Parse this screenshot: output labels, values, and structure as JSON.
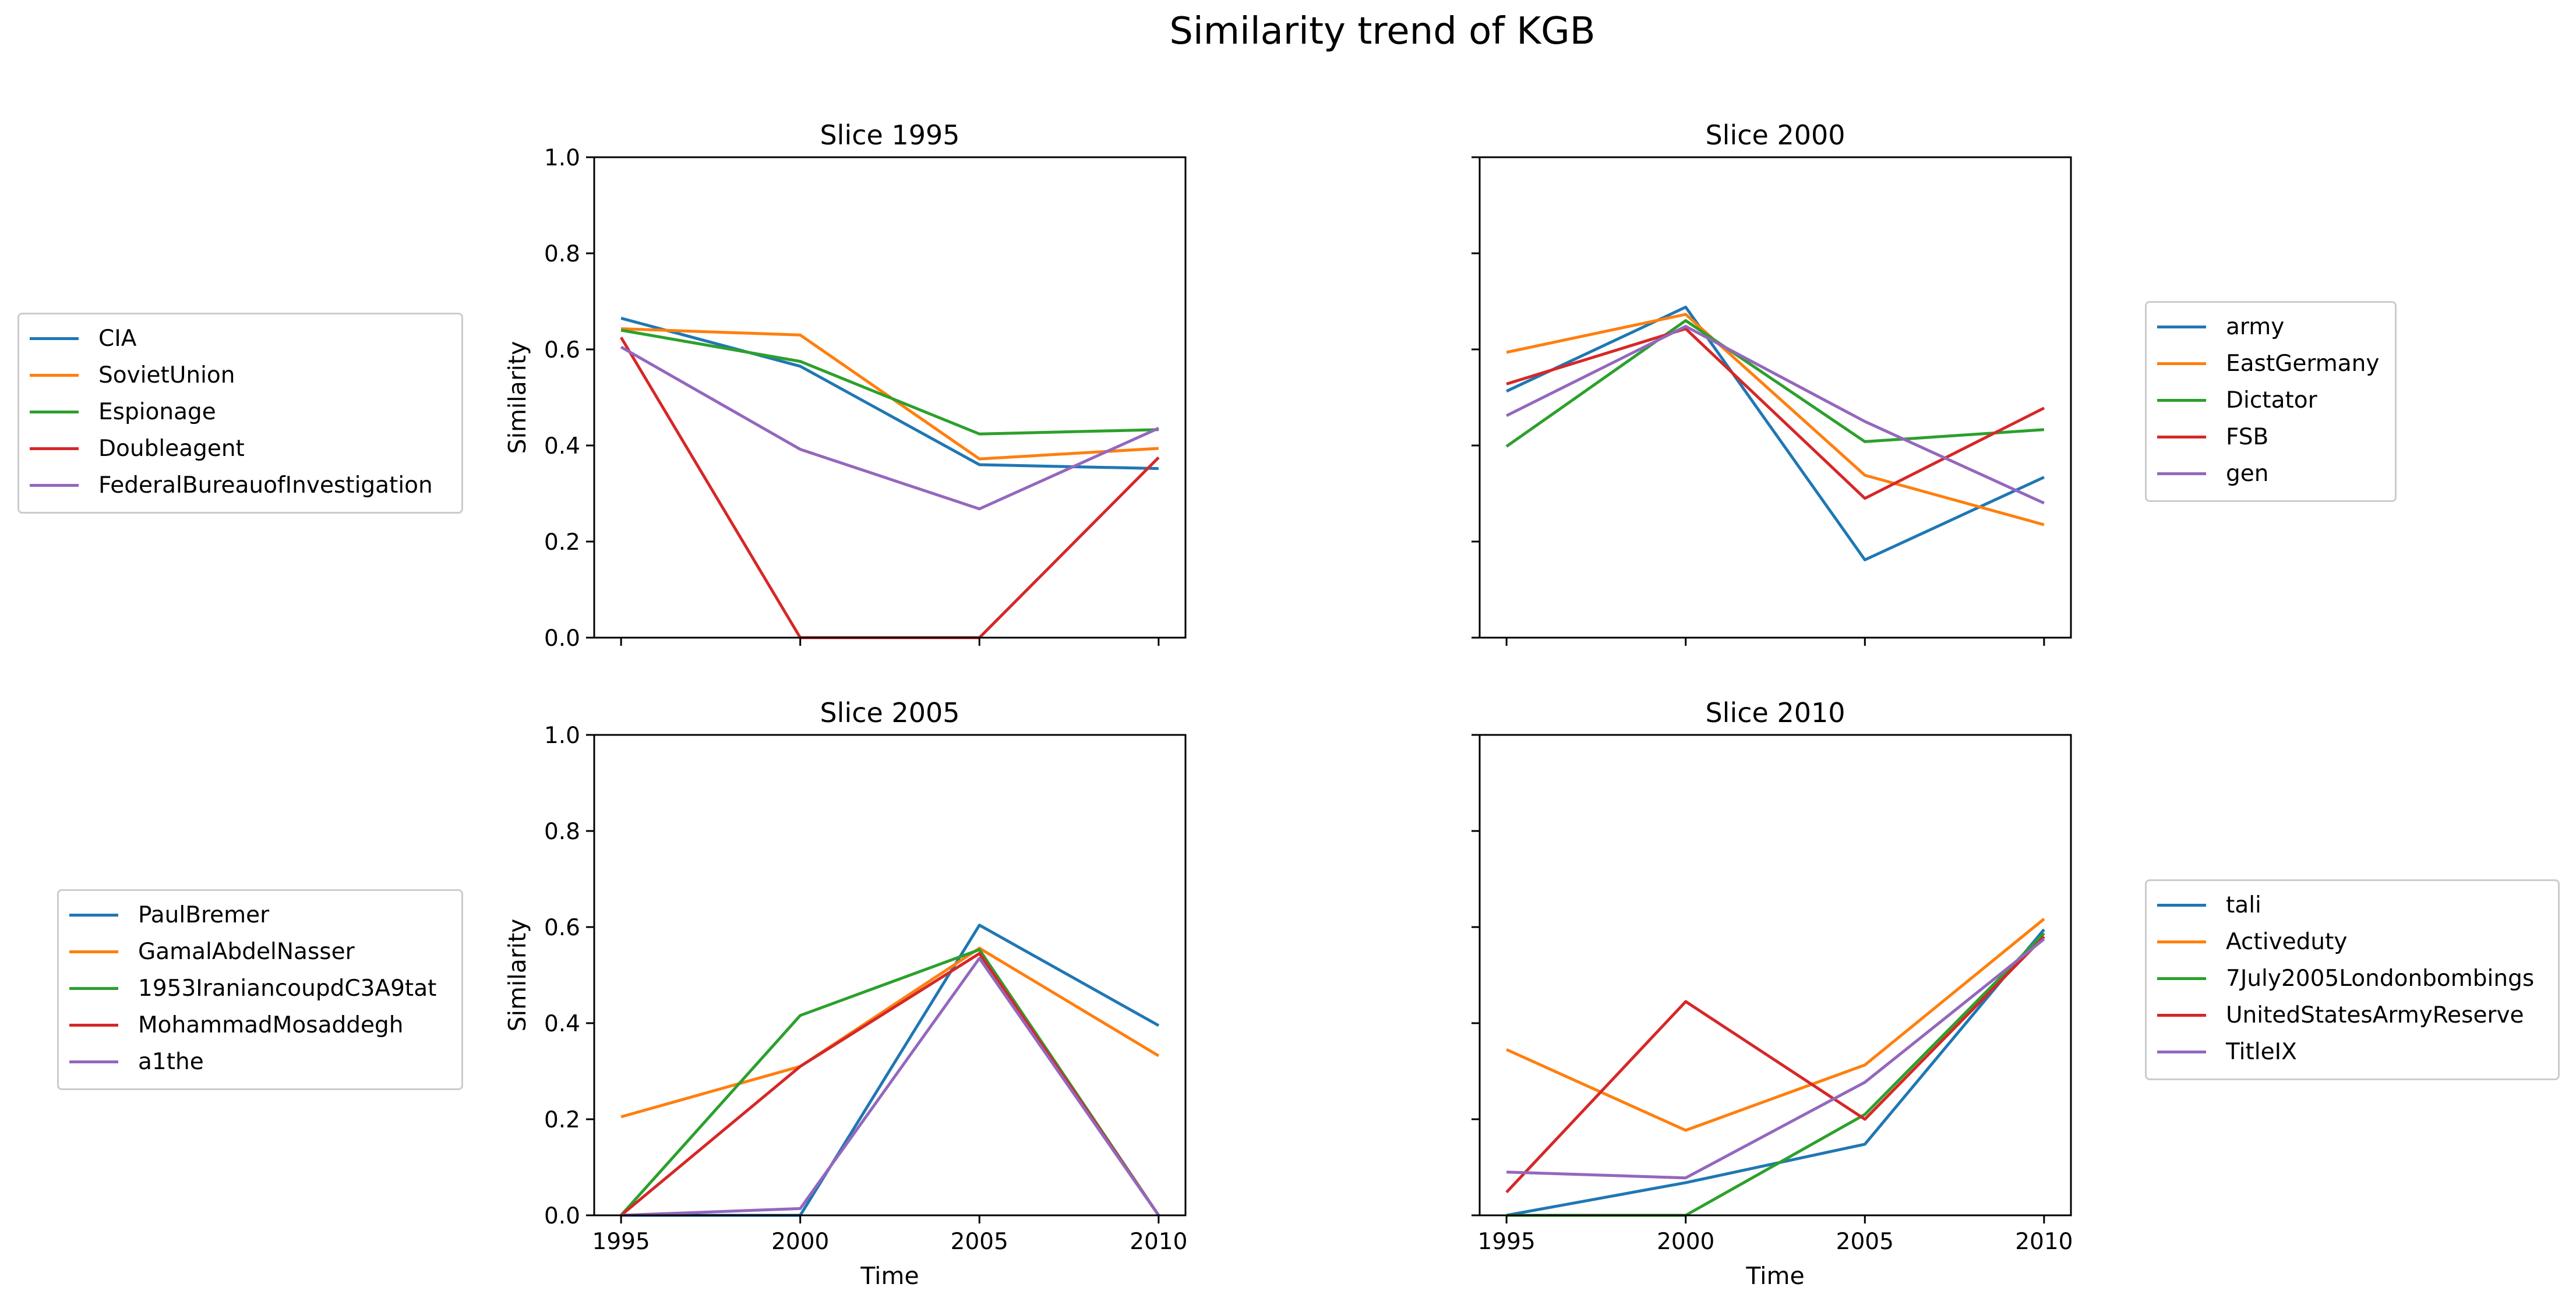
{
  "figure_title": "Similarity trend of KGB",
  "chart_data": [
    {
      "type": "line",
      "title": "Slice 1995",
      "xlabel": "",
      "ylabel": "Similarity",
      "x": [
        1995,
        2000,
        2005,
        2010
      ],
      "ylim": [
        0,
        1.0
      ],
      "yticks": [
        "0.0",
        "0.2",
        "0.4",
        "0.6",
        "0.8",
        "1.0"
      ],
      "xticks": [],
      "legend_position": "left",
      "series": [
        {
          "name": "CIA",
          "color": "#1f77b4",
          "values": [
            0.665,
            0.565,
            0.36,
            0.352
          ]
        },
        {
          "name": "SovietUnion",
          "color": "#ff7f0e",
          "values": [
            0.643,
            0.63,
            0.372,
            0.394
          ]
        },
        {
          "name": "Espionage",
          "color": "#2ca02c",
          "values": [
            0.64,
            0.575,
            0.424,
            0.433
          ]
        },
        {
          "name": "Doubleagent",
          "color": "#d62728",
          "values": [
            0.625,
            0.0,
            0.0,
            0.375
          ]
        },
        {
          "name": "FederalBureauofInvestigation",
          "color": "#9467bd",
          "values": [
            0.605,
            0.392,
            0.268,
            0.436
          ]
        }
      ]
    },
    {
      "type": "line",
      "title": "Slice 2000",
      "xlabel": "",
      "ylabel": "",
      "x": [
        1995,
        2000,
        2005,
        2010
      ],
      "ylim": [
        0,
        1.0
      ],
      "yticks": [],
      "xticks": [],
      "legend_position": "right",
      "series": [
        {
          "name": "army",
          "color": "#1f77b4",
          "values": [
            0.513,
            0.688,
            0.162,
            0.334
          ]
        },
        {
          "name": "EastGermany",
          "color": "#ff7f0e",
          "values": [
            0.594,
            0.673,
            0.338,
            0.235
          ]
        },
        {
          "name": "Dictator",
          "color": "#2ca02c",
          "values": [
            0.398,
            0.66,
            0.408,
            0.433
          ]
        },
        {
          "name": "FSB",
          "color": "#d62728",
          "values": [
            0.528,
            0.643,
            0.29,
            0.478
          ]
        },
        {
          "name": "gen",
          "color": "#9467bd",
          "values": [
            0.462,
            0.648,
            0.45,
            0.28
          ]
        }
      ]
    },
    {
      "type": "line",
      "title": "Slice 2005",
      "xlabel": "Time",
      "ylabel": "Similarity",
      "x": [
        1995,
        2000,
        2005,
        2010
      ],
      "ylim": [
        0,
        1.0
      ],
      "yticks": [
        "0.0",
        "0.2",
        "0.4",
        "0.6",
        "0.8",
        "1.0"
      ],
      "xticks": [
        "1995",
        "2000",
        "2005",
        "2010"
      ],
      "legend_position": "left",
      "series": [
        {
          "name": "PaulBremer",
          "color": "#1f77b4",
          "values": [
            0.0,
            0.0,
            0.604,
            0.395
          ]
        },
        {
          "name": "GamalAbdelNasser",
          "color": "#ff7f0e",
          "values": [
            0.205,
            0.31,
            0.556,
            0.332
          ]
        },
        {
          "name": "1953IraniancoupdC3A9tat",
          "color": "#2ca02c",
          "values": [
            0.0,
            0.416,
            0.553,
            0.0
          ]
        },
        {
          "name": "MohammadMosaddegh",
          "color": "#d62728",
          "values": [
            0.0,
            0.31,
            0.545,
            0.0
          ]
        },
        {
          "name": "a1the",
          "color": "#9467bd",
          "values": [
            0.0,
            0.014,
            0.535,
            0.0
          ]
        }
      ]
    },
    {
      "type": "line",
      "title": "Slice 2010",
      "xlabel": "Time",
      "ylabel": "",
      "x": [
        1995,
        2000,
        2005,
        2010
      ],
      "ylim": [
        0,
        1.0
      ],
      "yticks": [],
      "xticks": [
        "1995",
        "2000",
        "2005",
        "2010"
      ],
      "legend_position": "right",
      "series": [
        {
          "name": "tali",
          "color": "#1f77b4",
          "values": [
            0.0,
            0.068,
            0.148,
            0.595
          ]
        },
        {
          "name": "Activeduty",
          "color": "#ff7f0e",
          "values": [
            0.345,
            0.177,
            0.313,
            0.617
          ]
        },
        {
          "name": "7July2005Londonbombings",
          "color": "#2ca02c",
          "values": [
            0.0,
            0.0,
            0.21,
            0.587
          ]
        },
        {
          "name": "UnitedStatesArmyReserve",
          "color": "#d62728",
          "values": [
            0.048,
            0.445,
            0.2,
            0.58
          ]
        },
        {
          "name": "TitleIX",
          "color": "#9467bd",
          "values": [
            0.09,
            0.078,
            0.277,
            0.575
          ]
        }
      ]
    }
  ]
}
